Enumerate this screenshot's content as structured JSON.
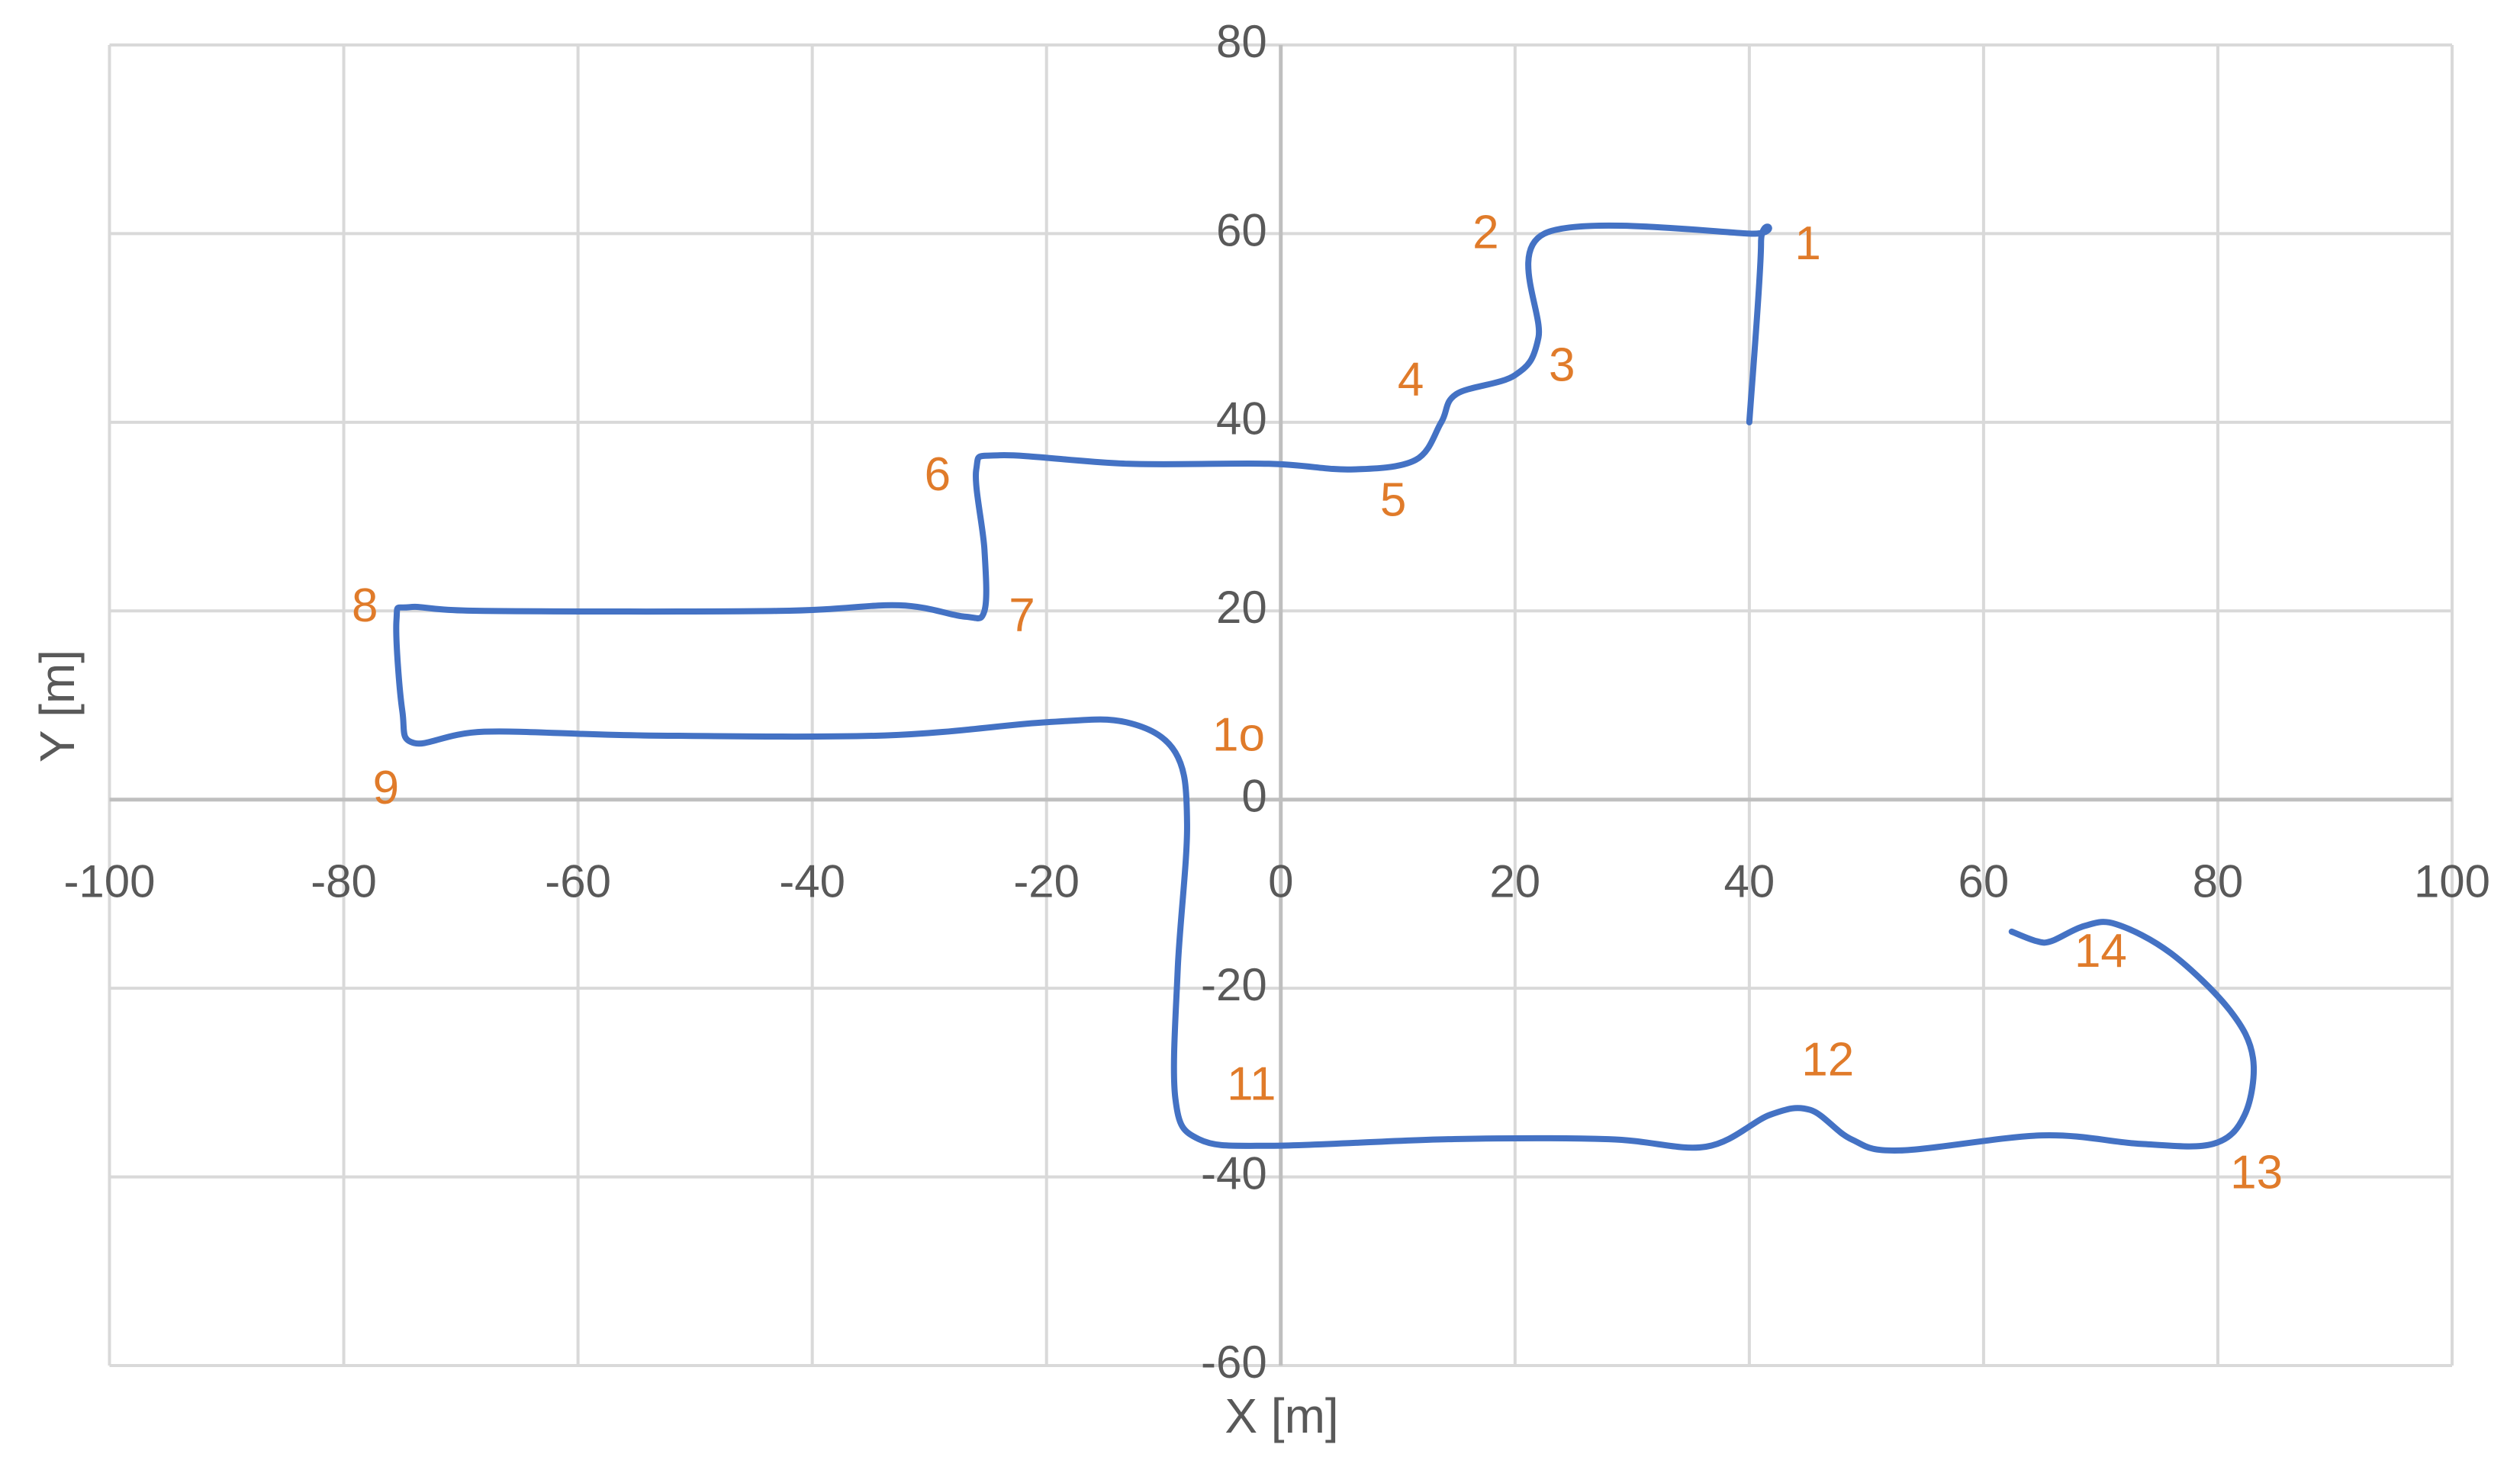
{
  "chart_data": {
    "type": "line",
    "xlabel": "X [m]",
    "ylabel": "Y [m]",
    "xlim": [
      -100,
      100
    ],
    "ylim": [
      -60,
      80
    ],
    "xticks": [
      -100,
      -80,
      -60,
      -40,
      -20,
      0,
      20,
      40,
      60,
      80,
      100
    ],
    "yticks": [
      -60,
      -40,
      -20,
      0,
      20,
      40,
      60,
      80
    ],
    "grid": true,
    "series": [
      {
        "color": "#4472c4",
        "x": [
          40,
          41,
          40,
          22.5,
          22,
          20,
          15,
          13.7,
          11.5,
          6,
          -1,
          -13,
          -24,
          -26,
          -25.3,
          -25.3,
          -27,
          -32.6,
          -43,
          -68,
          -74.4,
          -75.5,
          -75,
          -74,
          -68,
          -54.4,
          -33.8,
          -20,
          -13.2,
          -9,
          -8,
          -8.8,
          -9,
          -7,
          -0.8,
          14.3,
          28,
          36.3,
          41.8,
          45.2,
          48.7,
          52.8,
          65,
          73.4,
          79.6,
          82.3,
          83,
          81,
          76,
          71.3,
          68.6,
          65.8,
          64.5,
          62.4
        ],
        "values": [
          40,
          59,
          60,
          60,
          49,
          45,
          43,
          40,
          36,
          35,
          35.6,
          35.6,
          36.5,
          35,
          26.5,
          20,
          19.4,
          20.6,
          20,
          20,
          20.4,
          19,
          9.4,
          6,
          7.2,
          6.8,
          6.8,
          8.2,
          8.2,
          5,
          -2.6,
          -18,
          -31.7,
          -36,
          -36.7,
          -36,
          -36,
          -36.8,
          -33.4,
          -32.9,
          -36,
          -37.2,
          -35.6,
          -36.5,
          -36.5,
          -33.4,
          -27.4,
          -22.3,
          -16.3,
          -13.2,
          -13.4,
          -15,
          -15,
          -14
        ]
      }
    ],
    "annotation_color": "#e07b2a",
    "annotations": [
      {
        "text": "1",
        "x": 45,
        "y": 58.6
      },
      {
        "text": "2",
        "x": 17.5,
        "y": 59.8
      },
      {
        "text": "3",
        "x": 24,
        "y": 45.7
      },
      {
        "text": "4",
        "x": 11.1,
        "y": 44.2
      },
      {
        "text": "5",
        "x": 9.6,
        "y": 31.4
      },
      {
        "text": "6",
        "x": -29.3,
        "y": 34.1
      },
      {
        "text": "7",
        "x": -22.1,
        "y": 19.2
      },
      {
        "text": "8",
        "x": -78.2,
        "y": 20.2
      },
      {
        "text": "9",
        "x": -76.4,
        "y": 0.9
      },
      {
        "text": "1o",
        "x": -3.6,
        "y": 6.5
      },
      {
        "text": "11",
        "x": -2.5,
        "y": -30.5
      },
      {
        "text": "12",
        "x": 46.7,
        "y": -27.9
      },
      {
        "text": "13",
        "x": 83.3,
        "y": -39.9
      },
      {
        "text": "14",
        "x": 70,
        "y": -16.4
      }
    ]
  }
}
